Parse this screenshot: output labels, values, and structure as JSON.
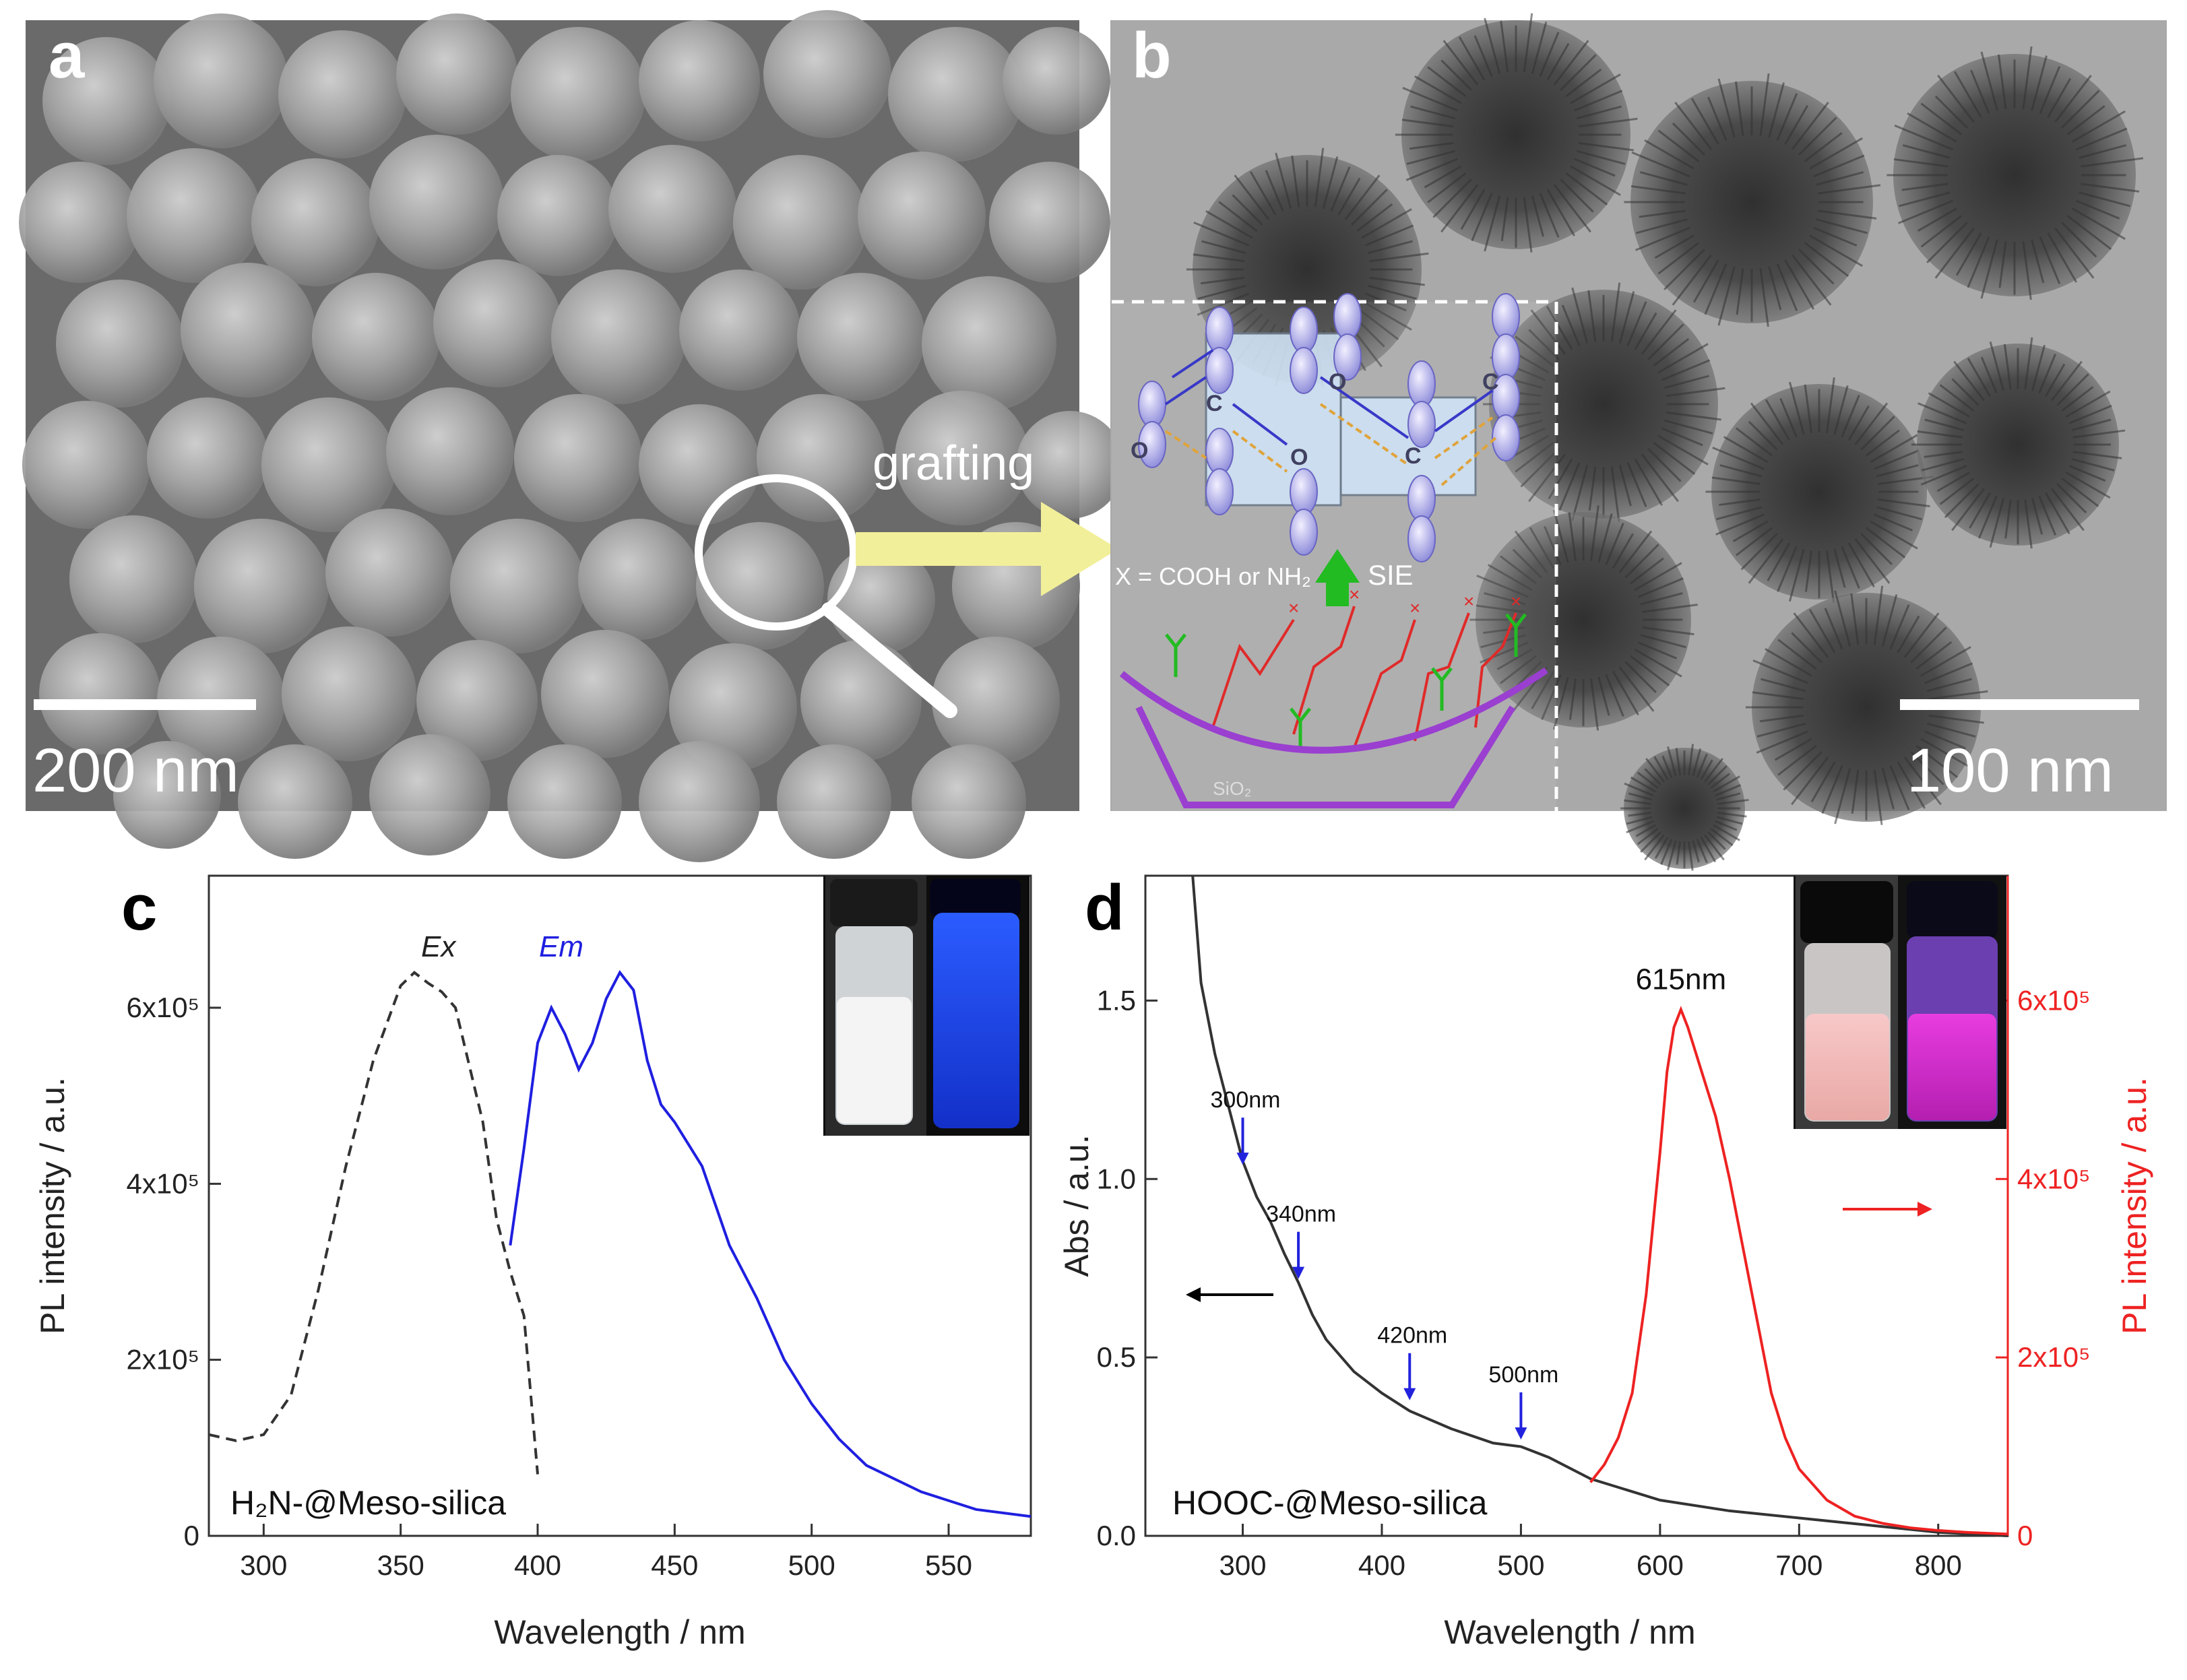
{
  "panels": {
    "a": {
      "letter": "a",
      "scale_bar": "200 nm",
      "annotation": "grafting"
    },
    "b": {
      "letter": "b",
      "scale_bar": "100 nm",
      "schematic_formula": "X = COOH or NH₂",
      "schematic_label": "SIE",
      "substrate_label": "SiO₂",
      "atom_labels": [
        "O",
        "C",
        "O",
        "O",
        "C",
        "C"
      ]
    },
    "c": {
      "letter": "c",
      "sample_label": "H₂N-@Meso-silica"
    },
    "d": {
      "letter": "d",
      "sample_label": "HOOC-@Meso-silica"
    }
  },
  "colors": {
    "em_curve": "#1f1fe0",
    "ex_curve": "#333333",
    "abs_curve": "#333333",
    "pl_red": "#ee2222",
    "arrow_yellow": "#f2ef9a",
    "arrow_green": "#22bb22",
    "sem_bg": "#6a6a6a",
    "tem_bg": "#a9a9a9"
  },
  "chart_data": [
    {
      "panel": "c",
      "type": "line",
      "title": "",
      "xlabel": "Wavelength / nm",
      "ylabel": "PL intensity / a.u.",
      "xlim": [
        280,
        580
      ],
      "ylim": [
        0,
        750000
      ],
      "xticks": [
        300,
        350,
        400,
        450,
        500,
        550
      ],
      "yticks": [
        0,
        200000,
        400000,
        600000
      ],
      "ytick_labels": [
        "0",
        "2x10⁵",
        "4x10⁵",
        "6x10⁵"
      ],
      "legend": "none",
      "annotations": [
        "Ex",
        "Em"
      ],
      "series": [
        {
          "name": "Ex",
          "style": "dashed",
          "x": [
            280,
            290,
            300,
            310,
            320,
            330,
            340,
            350,
            355,
            360,
            365,
            370,
            380,
            385,
            390,
            395,
            400
          ],
          "y": [
            115000,
            108000,
            115000,
            160000,
            280000,
            420000,
            540000,
            625000,
            640000,
            628000,
            618000,
            600000,
            470000,
            360000,
            300000,
            250000,
            70000
          ]
        },
        {
          "name": "Em",
          "style": "solid",
          "x": [
            390,
            395,
            400,
            405,
            410,
            415,
            420,
            425,
            430,
            435,
            440,
            445,
            450,
            460,
            470,
            480,
            490,
            500,
            510,
            520,
            540,
            560,
            580
          ],
          "y": [
            330000,
            440000,
            560000,
            600000,
            570000,
            530000,
            560000,
            610000,
            640000,
            620000,
            540000,
            490000,
            470000,
            420000,
            330000,
            270000,
            200000,
            150000,
            110000,
            80000,
            50000,
            30000,
            22000
          ]
        }
      ]
    },
    {
      "panel": "d",
      "type": "line",
      "title": "",
      "xlabel": "Wavelength / nm",
      "ylabel": "Abs / a.u.",
      "ylabel_right": "PL intensity / a.u.",
      "xlim": [
        230,
        850
      ],
      "ylim": [
        0,
        1.85
      ],
      "ylim_right": [
        0,
        740000
      ],
      "xticks": [
        300,
        400,
        500,
        600,
        700,
        800
      ],
      "yticks": [
        0.0,
        0.5,
        1.0,
        1.5
      ],
      "ytick_labels": [
        "0.0",
        "0.5",
        "1.0",
        "1.5"
      ],
      "yticks_right": [
        0,
        200000,
        400000,
        600000
      ],
      "ytick_labels_right": [
        "0",
        "2x10⁵",
        "4x10⁵",
        "6x10⁵"
      ],
      "legend": "none",
      "peak_label": "615nm",
      "arrow_annotations": [
        {
          "label": "300nm",
          "x": 300,
          "y": 1.04
        },
        {
          "label": "340nm",
          "x": 340,
          "y": 0.72
        },
        {
          "label": "420nm",
          "x": 420,
          "y": 0.38
        },
        {
          "label": "500nm",
          "x": 500,
          "y": 0.27
        }
      ],
      "series": [
        {
          "name": "Absorbance",
          "axis": "left",
          "x": [
            264,
            270,
            280,
            290,
            300,
            310,
            320,
            330,
            340,
            350,
            360,
            380,
            400,
            420,
            450,
            480,
            500,
            520,
            550,
            600,
            650,
            700,
            750,
            800,
            850
          ],
          "y": [
            1.85,
            1.55,
            1.35,
            1.2,
            1.05,
            0.95,
            0.88,
            0.79,
            0.71,
            0.62,
            0.55,
            0.46,
            0.4,
            0.35,
            0.3,
            0.26,
            0.25,
            0.22,
            0.16,
            0.1,
            0.07,
            0.05,
            0.03,
            0.01,
            0.0
          ]
        },
        {
          "name": "PL",
          "axis": "right",
          "x": [
            550,
            560,
            570,
            580,
            590,
            600,
            605,
            610,
            615,
            620,
            630,
            640,
            650,
            660,
            670,
            680,
            690,
            700,
            720,
            740,
            760,
            780,
            800,
            820,
            850
          ],
          "y": [
            60000,
            80000,
            110000,
            160000,
            270000,
            430000,
            520000,
            570000,
            590000,
            570000,
            520000,
            470000,
            400000,
            320000,
            240000,
            160000,
            110000,
            75000,
            40000,
            22000,
            14000,
            9000,
            6000,
            4000,
            2000
          ]
        }
      ]
    }
  ]
}
